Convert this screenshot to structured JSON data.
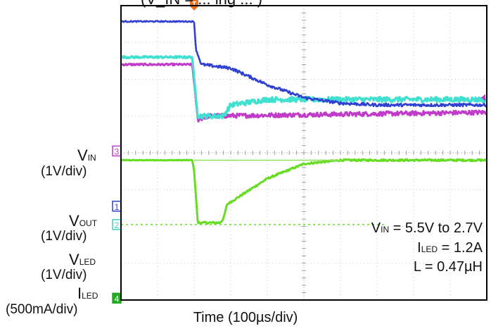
{
  "title_fragment": "(V_IN = ... ing ... )",
  "chart_data": {
    "type": "line",
    "xlabel": "Time (100µs/div)",
    "x_unit": "µs",
    "xlim": [
      0,
      1000
    ],
    "trigger_time_us": 200,
    "channels": [
      {
        "id": "3",
        "name_main": "V",
        "name_sub": "IN",
        "scale": "(1V/div)",
        "color": "#c03cc8",
        "marker_color": "#c03cc8",
        "marker_fill": "#ffffff"
      },
      {
        "id": "1",
        "name_main": "V",
        "name_sub": "OUT",
        "scale": "(1V/div)",
        "color": "#3040d0",
        "marker_color": "#3040d0",
        "marker_fill": "#ffffff"
      },
      {
        "id": "2",
        "name_main": "V",
        "name_sub": "LED",
        "scale": "(1V/div)",
        "color": "#40e0d0",
        "marker_color": "#40d0c0",
        "marker_fill": "#ffffff"
      },
      {
        "id": "4",
        "name_main": "I",
        "name_sub": "LED",
        "scale": "(500mA/div)",
        "color": "#66dd22",
        "marker_color": "#22aa22",
        "marker_fill": "#22aa22"
      }
    ],
    "series": [
      {
        "name": "V_OUT",
        "color": "#3040d0",
        "x": [
          0,
          195,
          200,
          205,
          220,
          300,
          400,
          500,
          600,
          700,
          800,
          1000
        ],
        "y": [
          7.57,
          7.57,
          7.55,
          6.8,
          6.4,
          6.3,
          5.85,
          5.5,
          5.35,
          5.3,
          5.3,
          5.3
        ]
      },
      {
        "name": "V_LED",
        "color": "#40e0d0",
        "x": [
          0,
          195,
          200,
          210,
          280,
          300,
          400,
          500,
          600,
          800,
          1000
        ],
        "y": [
          6.6,
          6.6,
          6.0,
          5.0,
          5.0,
          5.3,
          5.45,
          5.45,
          5.45,
          5.45,
          5.45
        ]
      },
      {
        "name": "V_IN",
        "color": "#c03cc8",
        "x": [
          0,
          195,
          200,
          210,
          240,
          1000
        ],
        "y": [
          6.4,
          6.4,
          5.9,
          4.9,
          5.0,
          5.1
        ]
      },
      {
        "name": "I_LED",
        "color": "#66dd22",
        "x": [
          0,
          195,
          200,
          210,
          230,
          270,
          280,
          290,
          400,
          500,
          600,
          800,
          1000
        ],
        "y": [
          3.8,
          3.8,
          3.5,
          2.1,
          2.1,
          2.1,
          2.2,
          2.6,
          3.3,
          3.7,
          3.8,
          3.8,
          3.8
        ]
      }
    ],
    "grid": true,
    "annotations": {
      "line1_main": "V",
      "line1_sub": "IN",
      "line1_rest": " = 5.5V to 2.7V",
      "line2_main": "I",
      "line2_sub": "LED",
      "line2_rest": " = 1.2A",
      "line3": "L = 0.47µH"
    }
  },
  "trigger_marker_label": "T"
}
